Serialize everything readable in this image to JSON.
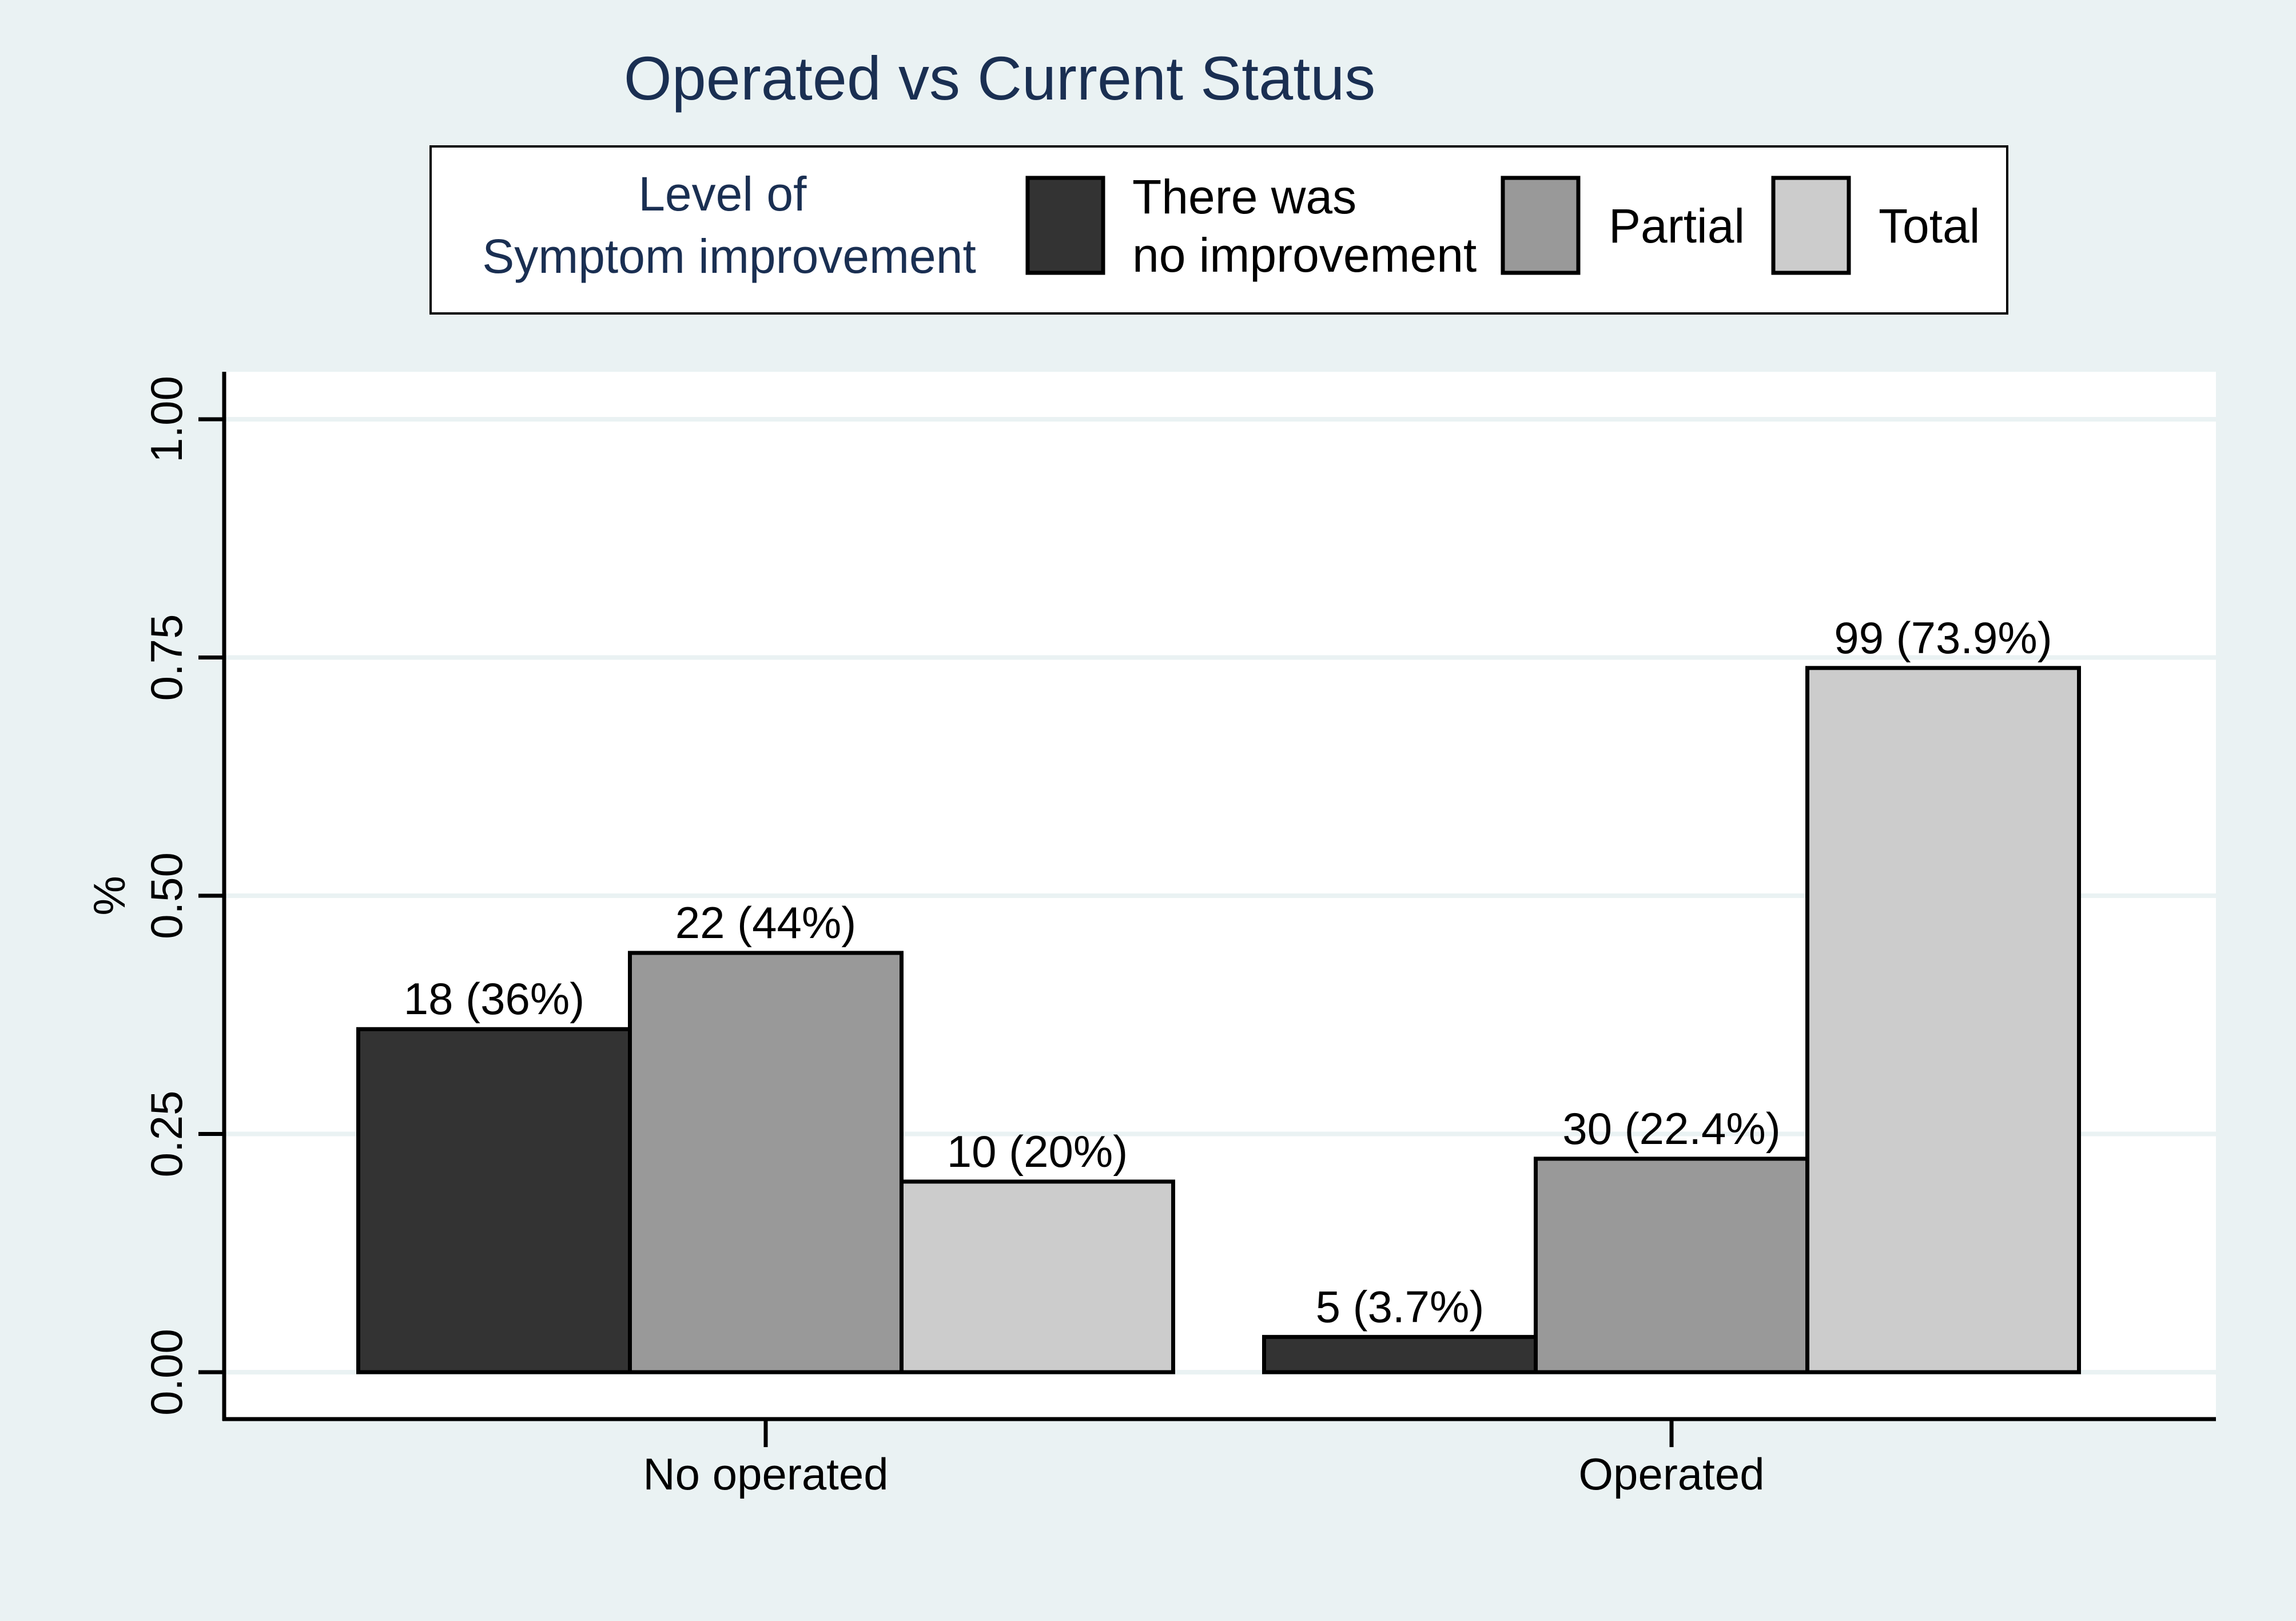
{
  "chart_data": {
    "type": "bar",
    "title": "Operated vs Current Status",
    "ylabel": "%",
    "xlabel": "",
    "categories": [
      "No operated",
      "Operated"
    ],
    "ylim": [
      0,
      1.05
    ],
    "yticks": [
      0,
      0.25,
      0.5,
      0.75,
      1.0
    ],
    "ytick_labels": [
      "0.00",
      "0.25",
      "0.50",
      "0.75",
      "1.00"
    ],
    "grid": true,
    "legend": {
      "title_lines": [
        "Level of",
        "Symptom improvement"
      ],
      "position": "top"
    },
    "series": [
      {
        "name": "There was no improvement",
        "name_lines": [
          "There was",
          "no improvement"
        ],
        "color": "#333333",
        "values": [
          0.36,
          0.037
        ],
        "labels": [
          "18 (36%)",
          "5 (3.7%)"
        ]
      },
      {
        "name": "Partial",
        "name_lines": [
          "Partial"
        ],
        "color": "#999999",
        "values": [
          0.44,
          0.224
        ],
        "labels": [
          "22 (44%)",
          "30 (22.4%)"
        ]
      },
      {
        "name": "Total",
        "name_lines": [
          "Total"
        ],
        "color": "#cccccc",
        "values": [
          0.2,
          0.739
        ],
        "labels": [
          "10 (20%)",
          "99 (73.9%)"
        ]
      }
    ],
    "colors": {
      "page_background": "#eaf2f3",
      "plot_background": "#ffffff",
      "title_color": "#1a2f52",
      "gridline": "#eaf2f3",
      "axis": "#000000"
    }
  }
}
